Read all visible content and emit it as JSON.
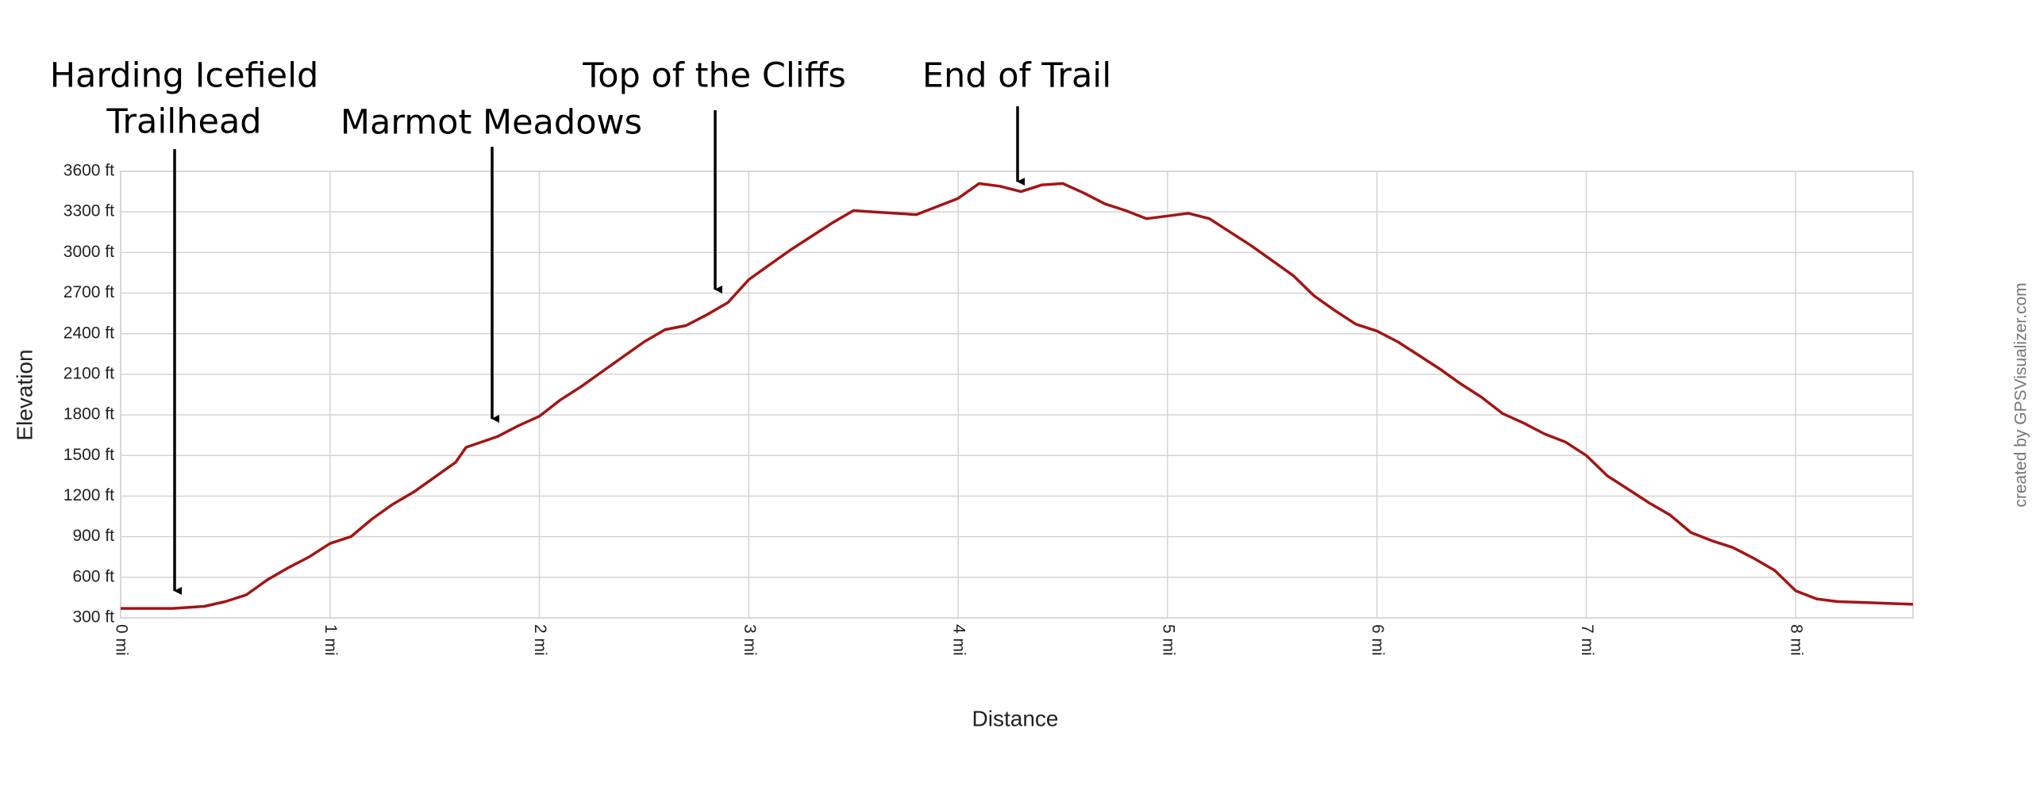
{
  "chart_data": {
    "type": "line",
    "x_label": "Distance",
    "y_label": "Elevation",
    "credit": "created by GPSVisualizer.com",
    "annotations": [
      {
        "lines": [
          "Harding Icefield",
          "Trailhead"
        ]
      },
      {
        "lines": [
          "Marmot Meadows"
        ]
      },
      {
        "lines": [
          "Top of the Cliffs"
        ]
      },
      {
        "lines": [
          "End of Trail"
        ]
      }
    ],
    "grid": true,
    "xlim": [
      0,
      8.56
    ],
    "ylim": [
      300,
      3600
    ],
    "xticks": [
      {
        "value": 0,
        "label": "0 mi"
      },
      {
        "value": 1,
        "label": "1 mi"
      },
      {
        "value": 2,
        "label": "2 mi"
      },
      {
        "value": 3,
        "label": "3 mi"
      },
      {
        "value": 4,
        "label": "4 mi"
      },
      {
        "value": 5,
        "label": "5 mi"
      },
      {
        "value": 6,
        "label": "6 mi"
      },
      {
        "value": 7,
        "label": "7 mi"
      },
      {
        "value": 8,
        "label": "8 mi"
      }
    ],
    "yticks": [
      {
        "value": 300,
        "label": "300 ft"
      },
      {
        "value": 600,
        "label": "600 ft"
      },
      {
        "value": 900,
        "label": "900 ft"
      },
      {
        "value": 1200,
        "label": "1200 ft"
      },
      {
        "value": 1500,
        "label": "1500 ft"
      },
      {
        "value": 1800,
        "label": "1800 ft"
      },
      {
        "value": 2100,
        "label": "2100 ft"
      },
      {
        "value": 2400,
        "label": "2400 ft"
      },
      {
        "value": 2700,
        "label": "2700 ft"
      },
      {
        "value": 3000,
        "label": "3000 ft"
      },
      {
        "value": 3300,
        "label": "3300 ft"
      },
      {
        "value": 3600,
        "label": "3600 ft"
      }
    ],
    "x": [
      0,
      0.25,
      0.4,
      0.5,
      0.6,
      0.7,
      0.8,
      0.9,
      1.0,
      1.1,
      1.2,
      1.3,
      1.4,
      1.5,
      1.6,
      1.65,
      1.8,
      1.9,
      2.0,
      2.1,
      2.2,
      2.3,
      2.4,
      2.5,
      2.6,
      2.7,
      2.8,
      2.9,
      3.0,
      3.1,
      3.2,
      3.3,
      3.4,
      3.5,
      3.6,
      3.8,
      3.9,
      4.0,
      4.1,
      4.2,
      4.3,
      4.4,
      4.5,
      4.6,
      4.7,
      4.8,
      4.9,
      5.0,
      5.1,
      5.2,
      5.3,
      5.4,
      5.5,
      5.6,
      5.7,
      5.8,
      5.9,
      6.0,
      6.1,
      6.2,
      6.3,
      6.4,
      6.5,
      6.6,
      6.7,
      6.8,
      6.9,
      7.0,
      7.1,
      7.2,
      7.3,
      7.4,
      7.5,
      7.6,
      7.7,
      7.8,
      7.9,
      8.0,
      8.1,
      8.2,
      8.3,
      8.56
    ],
    "series": [
      {
        "name": "Elevation",
        "color": "#a31515",
        "values": [
          370,
          370,
          385,
          420,
          470,
          580,
          670,
          750,
          850,
          900,
          1030,
          1140,
          1230,
          1340,
          1450,
          1560,
          1640,
          1720,
          1790,
          1910,
          2010,
          2120,
          2230,
          2340,
          2430,
          2460,
          2540,
          2630,
          2800,
          2910,
          3020,
          3120,
          3220,
          3310,
          3300,
          3280,
          3340,
          3400,
          3510,
          3490,
          3450,
          3500,
          3510,
          3440,
          3360,
          3310,
          3250,
          3270,
          3290,
          3250,
          3150,
          3050,
          2940,
          2830,
          2680,
          2570,
          2470,
          2420,
          2340,
          2240,
          2140,
          2030,
          1930,
          1810,
          1740,
          1660,
          1600,
          1500,
          1350,
          1250,
          1150,
          1060,
          930,
          870,
          820,
          740,
          650,
          500,
          440,
          420,
          415,
          400
        ]
      }
    ]
  }
}
